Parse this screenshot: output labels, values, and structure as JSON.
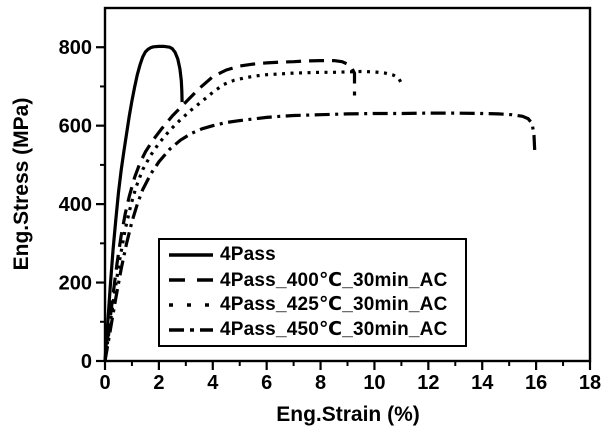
{
  "chart_data": {
    "type": "line",
    "title": "",
    "xlabel": "Eng.Strain (%)",
    "ylabel": "Eng.Stress (MPa)",
    "xlim": [
      0,
      18
    ],
    "ylim": [
      0,
      900
    ],
    "x_major_ticks": [
      0,
      2,
      4,
      6,
      8,
      10,
      12,
      14,
      16,
      18
    ],
    "x_minor_ticks": [
      1,
      3,
      5,
      7,
      9,
      11,
      13,
      15,
      17
    ],
    "y_major_ticks": [
      0,
      200,
      400,
      600,
      800
    ],
    "y_minor_ticks": [
      100,
      300,
      500,
      700
    ],
    "grid": false,
    "background_color": "#ffffff",
    "axis_color": "#000000",
    "legend_position": "inside-bottom-center",
    "series": [
      {
        "name": "4Pass",
        "line_style": "solid",
        "color": "#000000",
        "points": [
          [
            0,
            0
          ],
          [
            0.1,
            95
          ],
          [
            0.2,
            195
          ],
          [
            0.3,
            285
          ],
          [
            0.4,
            360
          ],
          [
            0.5,
            430
          ],
          [
            0.6,
            487
          ],
          [
            0.7,
            535
          ],
          [
            0.8,
            580
          ],
          [
            0.9,
            625
          ],
          [
            1.0,
            663
          ],
          [
            1.1,
            698
          ],
          [
            1.2,
            730
          ],
          [
            1.3,
            755
          ],
          [
            1.4,
            775
          ],
          [
            1.5,
            788
          ],
          [
            1.6,
            795
          ],
          [
            1.7,
            799
          ],
          [
            1.8,
            801
          ],
          [
            2.0,
            802
          ],
          [
            2.2,
            802
          ],
          [
            2.4,
            800
          ],
          [
            2.5,
            796
          ],
          [
            2.6,
            787
          ],
          [
            2.7,
            770
          ],
          [
            2.78,
            745
          ],
          [
            2.83,
            715
          ],
          [
            2.85,
            690
          ],
          [
            2.86,
            660
          ]
        ]
      },
      {
        "name": "4Pass_400℃_30min_AC",
        "line_style": "dashed",
        "color": "#000000",
        "points": [
          [
            0,
            0
          ],
          [
            0.15,
            85
          ],
          [
            0.3,
            170
          ],
          [
            0.45,
            250
          ],
          [
            0.6,
            320
          ],
          [
            0.75,
            375
          ],
          [
            0.9,
            420
          ],
          [
            1.1,
            468
          ],
          [
            1.3,
            505
          ],
          [
            1.5,
            533
          ],
          [
            1.8,
            565
          ],
          [
            2.1,
            592
          ],
          [
            2.5,
            625
          ],
          [
            3.0,
            660
          ],
          [
            3.5,
            695
          ],
          [
            4.0,
            725
          ],
          [
            4.5,
            742
          ],
          [
            5.0,
            752
          ],
          [
            5.5,
            757
          ],
          [
            6.0,
            760
          ],
          [
            6.5,
            762
          ],
          [
            7.0,
            763
          ],
          [
            7.5,
            765
          ],
          [
            8.0,
            766
          ],
          [
            8.5,
            766
          ],
          [
            8.8,
            763
          ],
          [
            9.0,
            757
          ],
          [
            9.15,
            748
          ],
          [
            9.26,
            734
          ],
          [
            9.26,
            700
          ],
          [
            9.26,
            677
          ]
        ]
      },
      {
        "name": "4Pass_425℃_30min_AC",
        "line_style": "dotted",
        "color": "#000000",
        "points": [
          [
            0,
            0
          ],
          [
            0.15,
            75
          ],
          [
            0.35,
            170
          ],
          [
            0.55,
            260
          ],
          [
            0.75,
            335
          ],
          [
            0.95,
            395
          ],
          [
            1.15,
            443
          ],
          [
            1.4,
            488
          ],
          [
            1.7,
            525
          ],
          [
            2.0,
            555
          ],
          [
            2.4,
            588
          ],
          [
            2.8,
            615
          ],
          [
            3.2,
            640
          ],
          [
            3.6,
            662
          ],
          [
            4.0,
            685
          ],
          [
            4.4,
            705
          ],
          [
            4.8,
            716
          ],
          [
            5.2,
            722
          ],
          [
            5.6,
            727
          ],
          [
            6.0,
            730
          ],
          [
            6.5,
            732
          ],
          [
            7.0,
            734
          ],
          [
            7.5,
            735
          ],
          [
            8.0,
            736
          ],
          [
            8.5,
            736
          ],
          [
            9.0,
            737
          ],
          [
            9.5,
            738
          ],
          [
            10.0,
            737
          ],
          [
            10.4,
            734
          ],
          [
            10.7,
            729
          ],
          [
            10.9,
            721
          ],
          [
            11.0,
            708
          ]
        ]
      },
      {
        "name": "4Pass_450℃_30min_AC",
        "line_style": "dash-dot",
        "color": "#000000",
        "points": [
          [
            0,
            0
          ],
          [
            0.2,
            80
          ],
          [
            0.4,
            160
          ],
          [
            0.6,
            235
          ],
          [
            0.8,
            300
          ],
          [
            1.0,
            355
          ],
          [
            1.2,
            400
          ],
          [
            1.4,
            437
          ],
          [
            1.7,
            477
          ],
          [
            2.0,
            508
          ],
          [
            2.4,
            540
          ],
          [
            2.8,
            563
          ],
          [
            3.2,
            580
          ],
          [
            3.6,
            592
          ],
          [
            4.0,
            600
          ],
          [
            4.5,
            608
          ],
          [
            5.0,
            613
          ],
          [
            5.5,
            617
          ],
          [
            6.0,
            621
          ],
          [
            6.5,
            624
          ],
          [
            7.0,
            626
          ],
          [
            8.0,
            628
          ],
          [
            9.0,
            630
          ],
          [
            10.0,
            631
          ],
          [
            11.0,
            631
          ],
          [
            12.0,
            632
          ],
          [
            13.0,
            632
          ],
          [
            14.0,
            631
          ],
          [
            14.6,
            630
          ],
          [
            15.1,
            628
          ],
          [
            15.5,
            624
          ],
          [
            15.7,
            618
          ],
          [
            15.85,
            606
          ],
          [
            15.92,
            575
          ],
          [
            15.95,
            532
          ]
        ]
      }
    ]
  },
  "legend": {
    "items": [
      {
        "label": "4Pass",
        "style": "solid"
      },
      {
        "label": "4Pass_400℃_30min_AC",
        "style": "dashed"
      },
      {
        "label": "4Pass_425℃_30min_AC",
        "style": "dotted"
      },
      {
        "label": "4Pass_450℃_30min_AC",
        "style": "dash-dot"
      }
    ]
  }
}
